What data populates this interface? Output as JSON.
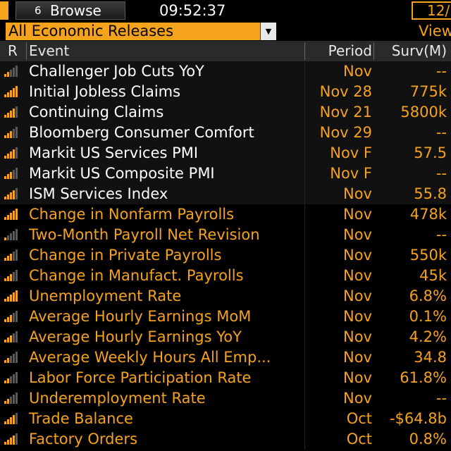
{
  "topbar": {
    "browse_icon": "6",
    "browse_label": "Browse",
    "time": "09:52:37",
    "date_partial": "12/"
  },
  "filter": {
    "selected": "All Economic Releases",
    "view_label": "View"
  },
  "columns": {
    "r": "R",
    "event": "Event",
    "period": "Period",
    "surv": "Surv(M)"
  },
  "colors": {
    "accent": "#f5a21c",
    "bar_lit": "#f5a21c",
    "bar_dim": "#5a5a5a"
  },
  "rows": [
    {
      "event": "Challenger Job Cuts YoY",
      "period": "Nov",
      "surv": "--",
      "rank": 2,
      "status": "released"
    },
    {
      "event": "Initial Jobless Claims",
      "period": "Nov 28",
      "surv": "775k",
      "rank": 5,
      "status": "released"
    },
    {
      "event": "Continuing Claims",
      "period": "Nov 21",
      "surv": "5800k",
      "rank": 4,
      "status": "released"
    },
    {
      "event": "Bloomberg Consumer Comfort",
      "period": "Nov 29",
      "surv": "--",
      "rank": 3,
      "status": "released"
    },
    {
      "event": "Markit US Services PMI",
      "period": "Nov F",
      "surv": "57.5",
      "rank": 4,
      "status": "released"
    },
    {
      "event": "Markit US Composite PMI",
      "period": "Nov F",
      "surv": "--",
      "rank": 3,
      "status": "released"
    },
    {
      "event": "ISM Services Index",
      "period": "Nov",
      "surv": "55.8",
      "rank": 4,
      "status": "released"
    },
    {
      "event": "Change in Nonfarm Payrolls",
      "period": "Nov",
      "surv": "478k",
      "rank": 5,
      "status": "upcoming"
    },
    {
      "event": "Two-Month Payroll Net Revision",
      "period": "Nov",
      "surv": "--",
      "rank": 1,
      "status": "upcoming"
    },
    {
      "event": "Change in Private Payrolls",
      "period": "Nov",
      "surv": "550k",
      "rank": 3,
      "status": "upcoming"
    },
    {
      "event": "Change in Manufact. Payrolls",
      "period": "Nov",
      "surv": "45k",
      "rank": 3,
      "status": "upcoming"
    },
    {
      "event": "Unemployment Rate",
      "period": "Nov",
      "surv": "6.8%",
      "rank": 5,
      "status": "upcoming"
    },
    {
      "event": "Average Hourly Earnings MoM",
      "period": "Nov",
      "surv": "0.1%",
      "rank": 3,
      "status": "upcoming"
    },
    {
      "event": "Average Hourly Earnings YoY",
      "period": "Nov",
      "surv": "4.2%",
      "rank": 3,
      "status": "upcoming"
    },
    {
      "event": "Average Weekly Hours All Emp...",
      "period": "Nov",
      "surv": "34.8",
      "rank": 2,
      "status": "upcoming"
    },
    {
      "event": "Labor Force Participation Rate",
      "period": "Nov",
      "surv": "61.8%",
      "rank": 2,
      "status": "upcoming"
    },
    {
      "event": "Underemployment Rate",
      "period": "Nov",
      "surv": "--",
      "rank": 2,
      "status": "upcoming"
    },
    {
      "event": "Trade Balance",
      "period": "Oct",
      "surv": "-$64.8b",
      "rank": 4,
      "status": "upcoming"
    },
    {
      "event": "Factory Orders",
      "period": "Oct",
      "surv": "0.8%",
      "rank": 4,
      "status": "upcoming"
    }
  ]
}
